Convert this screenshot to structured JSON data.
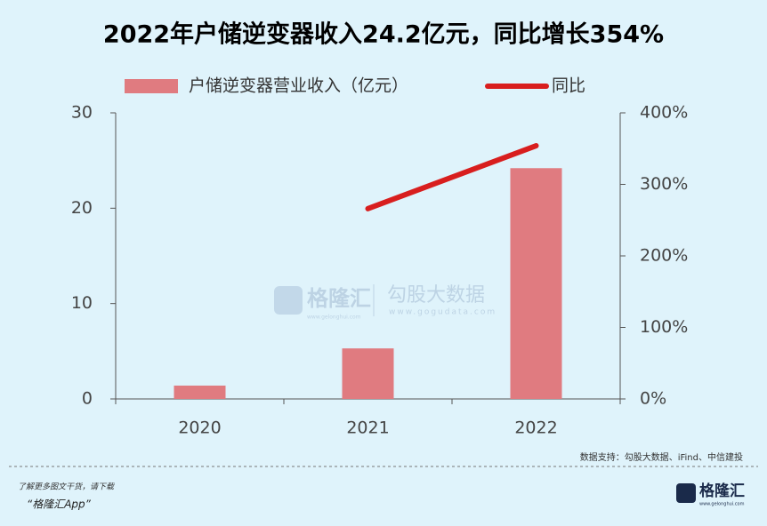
{
  "chart_data": {
    "type": "bar",
    "title": "2022年户储逆变器收入24.2亿元，同比增长354%",
    "categories": [
      "2020",
      "2021",
      "2022"
    ],
    "series": [
      {
        "name": "户储逆变器营业收入（亿元）",
        "type": "bar",
        "color": "#e07b80",
        "values": [
          1.4,
          5.3,
          24.2
        ]
      },
      {
        "name": "同比",
        "type": "line",
        "axis": "y2",
        "color": "#d81e1e",
        "values": [
          null,
          266,
          354
        ]
      }
    ],
    "ylim": [
      0,
      30
    ],
    "yticks": [
      0,
      10,
      20,
      30
    ],
    "y2lim": [
      0,
      400
    ],
    "y2ticks": [
      {
        "value": 0,
        "label": "0%"
      },
      {
        "value": 100,
        "label": "100%"
      },
      {
        "value": 200,
        "label": "200%"
      },
      {
        "value": 300,
        "label": "300%"
      },
      {
        "value": 400,
        "label": "400%"
      }
    ],
    "grid": false
  },
  "watermark": {
    "brand": "格隆汇",
    "brand_url": "www.gelonghui.com",
    "partner": "勾股大数据",
    "partner_url": "www.gogudata.com"
  },
  "footer": {
    "source": "数据支持：勾股大数据、iFind、中信建投",
    "promo": "了解更多图文干货，请下载",
    "app": "“格隆汇App”",
    "logo": "格隆汇",
    "logo_url": "www.gelonghui.com"
  }
}
